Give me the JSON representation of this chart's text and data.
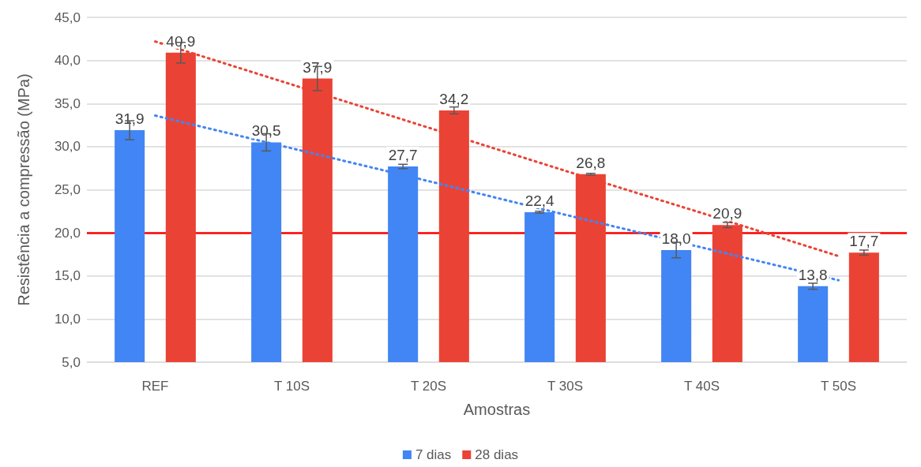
{
  "chart_data": {
    "type": "bar",
    "xlabel": "Amostras",
    "ylabel": "Resistência a compressão (MPa)",
    "categories": [
      "REF",
      "T 10S",
      "T 20S",
      "T 30S",
      "T 40S",
      "T 50S"
    ],
    "series": [
      {
        "name": "7 dias",
        "color": "#4285f4",
        "values": [
          31.9,
          30.5,
          27.7,
          22.4,
          18.0,
          13.8
        ],
        "value_labels": [
          "31,9",
          "30,5",
          "27,7",
          "22,4",
          "18,0",
          "13,8"
        ],
        "errors": [
          1.1,
          1.0,
          0.25,
          0.1,
          0.9,
          0.35
        ]
      },
      {
        "name": "28 dias",
        "color": "#ea4335",
        "values": [
          40.9,
          37.9,
          34.2,
          26.8,
          20.9,
          17.7
        ],
        "value_labels": [
          "40,9",
          "37,9",
          "34,2",
          "26,8",
          "20,9",
          "17,7"
        ],
        "errors": [
          1.2,
          1.4,
          0.4,
          0.1,
          0.3,
          0.3
        ]
      },
      {
        "type": "line",
        "color": "#4285f4",
        "line_style": "dotted",
        "marker": "none",
        "x": [
          "REF",
          "T 10S",
          "T 20S",
          "T 30S",
          "T 40S",
          "T 50S"
        ],
        "values": [
          33.6,
          29.8,
          26.0,
          22.1,
          18.3,
          14.5
        ]
      },
      {
        "type": "line",
        "color": "#ea4335",
        "line_style": "dotted",
        "marker": "none",
        "x": [
          "REF",
          "T 10S",
          "T 20S",
          "T 30S",
          "T 40S",
          "T 50S"
        ],
        "values": [
          42.2,
          37.2,
          32.2,
          27.2,
          22.3,
          17.3
        ]
      }
    ],
    "ylim": [
      5,
      45
    ],
    "yticks": [
      {
        "value": 5,
        "label": "5,0"
      },
      {
        "value": 10,
        "label": "10,0"
      },
      {
        "value": 15,
        "label": "15,0"
      },
      {
        "value": 20,
        "label": "20,0"
      },
      {
        "value": 25,
        "label": "25,0"
      },
      {
        "value": 30,
        "label": "30,0"
      },
      {
        "value": 35,
        "label": "35,0"
      },
      {
        "value": 40,
        "label": "40,0"
      },
      {
        "value": 45,
        "label": "45,0"
      }
    ],
    "ref_lines": [
      {
        "axis": "y",
        "value": 20,
        "color": "#ff0000"
      }
    ],
    "grid": "y",
    "legend": "bottom"
  }
}
